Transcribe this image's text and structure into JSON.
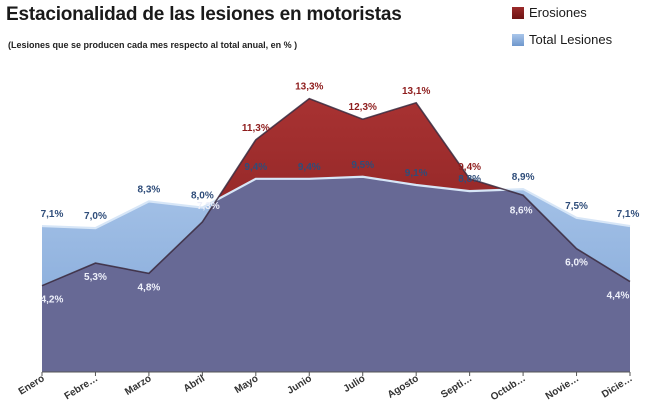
{
  "chart_data": {
    "type": "area",
    "title": "Estacionalidad de las lesiones en motoristas",
    "subtitle": "(Lesiones que se producen cada mes respecto al total anual, en % )",
    "categories": [
      "Enero",
      "Febre…",
      "Marzo",
      "Abril",
      "Mayo",
      "Junio",
      "Julio",
      "Agosto",
      "Septi…",
      "Octub…",
      "Novie…",
      "Dicie…"
    ],
    "series": [
      {
        "name": "Erosiones",
        "values": [
          4.2,
          5.3,
          4.8,
          7.3,
          11.3,
          13.3,
          12.3,
          13.1,
          9.4,
          8.6,
          6.0,
          4.4
        ],
        "labels": [
          "4,2%",
          "5,3%",
          "4,8%",
          "7,3%",
          "11,3%",
          "13,3%",
          "12,3%",
          "13,1%",
          "9,4%",
          "8,6%",
          "6,0%",
          "4,4%"
        ],
        "color": "#8e2222"
      },
      {
        "name": "Total Lesiones",
        "values": [
          7.1,
          7.0,
          8.3,
          8.0,
          9.4,
          9.4,
          9.5,
          9.1,
          8.8,
          8.9,
          7.5,
          7.1
        ],
        "labels": [
          "7,1%",
          "7,0%",
          "8,3%",
          "8,0%",
          "9,4%",
          "9,4%",
          "9,5%",
          "9,1%",
          "8,8%",
          "8,9%",
          "7,5%",
          "7,1%"
        ],
        "color": "#8fb2e0"
      }
    ],
    "overlap_color": "#676995",
    "ylim": [
      0,
      14.5
    ],
    "grid": false,
    "legend": "top-right"
  }
}
